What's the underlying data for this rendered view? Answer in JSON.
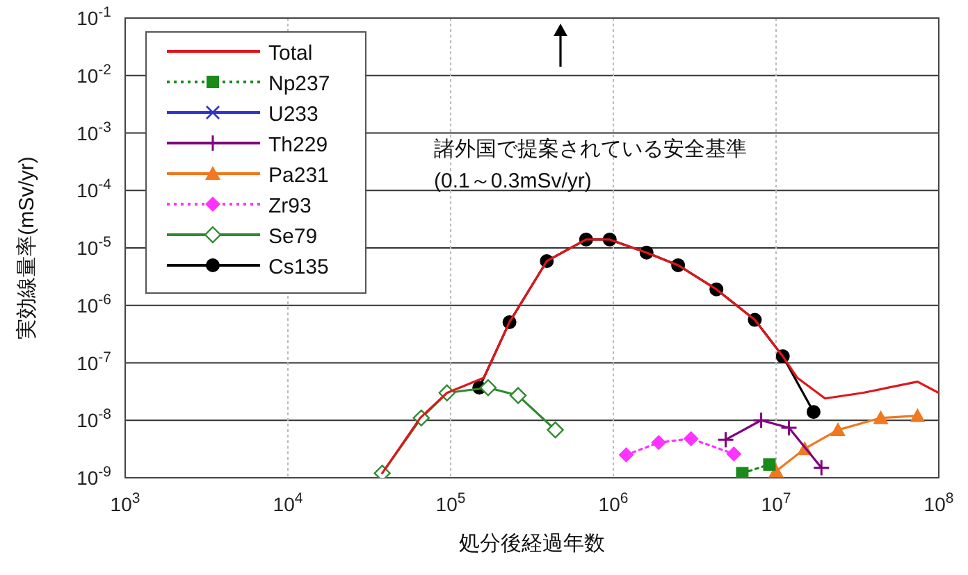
{
  "chart_data": {
    "type": "line",
    "xlabel": "処分後経過年数",
    "ylabel": "実効線量率(mSv/yr)",
    "annotations": [
      "諸外国で提案されている安全基準",
      "(0.1～0.3mSv/yr)"
    ],
    "log": "xy",
    "xlim": [
      1000,
      100000000
    ],
    "ylim": [
      1e-09,
      0.1
    ],
    "xticks": [
      {
        "value": 1000,
        "label": "10$^{3}$"
      },
      {
        "value": 10000,
        "label": "10$^{4}$"
      },
      {
        "value": 100000,
        "label": "10$^{5}$"
      },
      {
        "value": 1000000,
        "label": "10$^{6}$"
      },
      {
        "value": 10000000,
        "label": "10$^{7}$"
      },
      {
        "value": 100000000,
        "label": "10$^{8}$"
      }
    ],
    "yticks": [
      {
        "value": 1e-09,
        "label": "10$^{-9}$"
      },
      {
        "value": 1e-08,
        "label": "10$^{-8}$"
      },
      {
        "value": 1e-07,
        "label": "10$^{-7}$"
      },
      {
        "value": 1e-06,
        "label": "10$^{-6}$"
      },
      {
        "value": 1e-05,
        "label": "10$^{-5}$"
      },
      {
        "value": 0.0001,
        "label": "10$^{-4}$"
      },
      {
        "value": 0.001,
        "label": "10$^{-3}$"
      },
      {
        "value": 0.01,
        "label": "10$^{-2}$"
      },
      {
        "value": 0.1,
        "label": "10$^{-1}$"
      }
    ],
    "grid": true,
    "legend": "top left",
    "series": [
      {
        "name": "Total",
        "color": "#e0161b",
        "marker": "none",
        "line_style": "solid",
        "x": [
          38000,
          65000,
          95000,
          160000,
          230000,
          390000,
          680000,
          950000,
          1600000,
          2500000,
          4300000,
          7400000,
          11000000,
          13500000,
          20000000,
          34000000,
          74000000,
          100000000
        ],
        "values": [
          1.2e-09,
          1.1e-08,
          3e-08,
          5.5e-08,
          5.1e-07,
          5.9e-06,
          1.4e-05,
          1.4e-05,
          8.3e-06,
          5e-06,
          1.9e-06,
          5.6e-07,
          1.3e-07,
          5.5e-08,
          2.4e-08,
          3e-08,
          4.7e-08,
          3e-08
        ]
      },
      {
        "name": "Np237",
        "color": "#1a8a1a",
        "marker": "square",
        "line_style": "dotted",
        "x": [
          6200000,
          9100000
        ],
        "values": [
          1.2e-09,
          1.7e-09
        ]
      },
      {
        "name": "U233",
        "color": "#3333cc",
        "marker": "cross",
        "line_style": "solid"
      },
      {
        "name": "Th229",
        "color": "#800080",
        "marker": "plus",
        "line_style": "solid",
        "x": [
          4900000,
          8100000,
          12000000,
          19000000
        ],
        "values": [
          4.6e-09,
          1e-08,
          7.4e-09,
          1.5e-09
        ]
      },
      {
        "name": "Pa231",
        "color": "#f07820",
        "marker": "triangle",
        "line_style": "solid",
        "x": [
          10000000,
          15000000,
          24000000,
          44000000,
          74000000
        ],
        "values": [
          1.3e-09,
          3.2e-09,
          6.8e-09,
          1.1e-08,
          1.2e-08
        ]
      },
      {
        "name": "Zr93",
        "color": "#ff33ff",
        "marker": "diamond",
        "line_style": "dotted",
        "x": [
          1200000,
          1900000,
          3000000,
          5500000
        ],
        "values": [
          2.5e-09,
          4.1e-09,
          4.8e-09,
          2.6e-09
        ]
      },
      {
        "name": "Se79",
        "color": "#2e8b2e",
        "marker": "diamond-open",
        "line_style": "solid",
        "x": [
          38000,
          66000,
          95000,
          170000,
          260000,
          440000
        ],
        "values": [
          1.2e-09,
          1.1e-08,
          3e-08,
          3.7e-08,
          2.7e-08,
          6.8e-09
        ]
      },
      {
        "name": "Cs135",
        "color": "#000000",
        "marker": "circle",
        "line_style": "solid",
        "x": [
          150000,
          230000,
          390000,
          680000,
          950000,
          1600000,
          2500000,
          4300000,
          7400000,
          11000000,
          17000000
        ],
        "values": [
          3.7e-08,
          5.1e-07,
          5.9e-06,
          1.4e-05,
          1.4e-05,
          8.3e-06,
          5e-06,
          1.9e-06,
          5.6e-07,
          1.3e-07,
          1.4e-08
        ]
      }
    ]
  }
}
